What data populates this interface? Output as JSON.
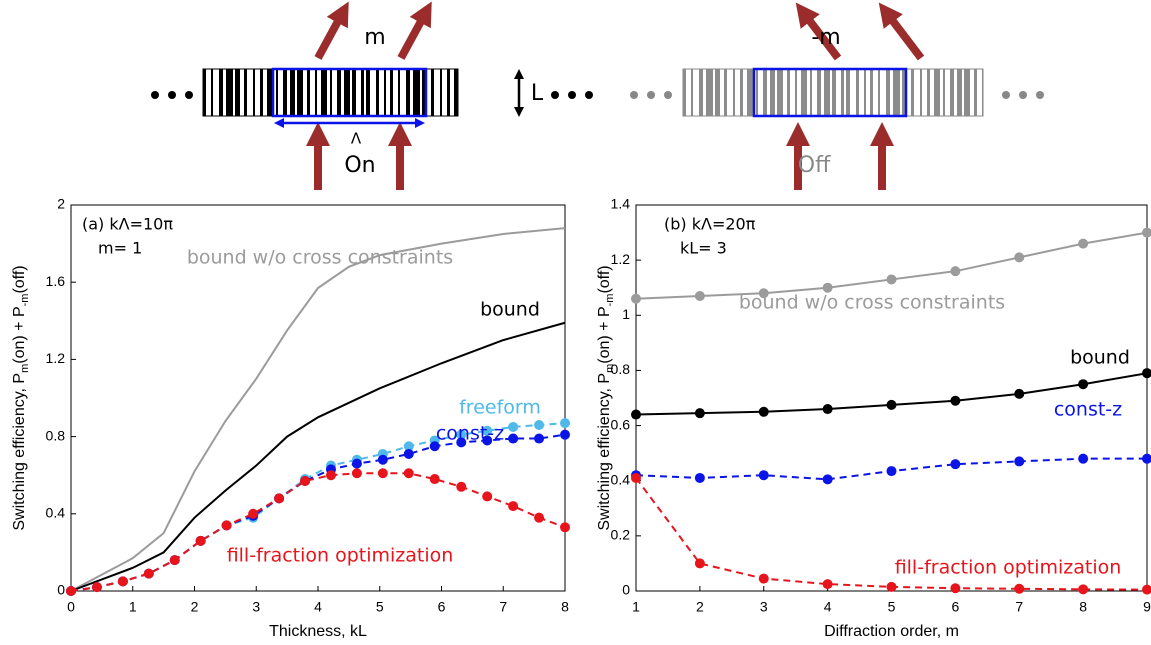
{
  "diagram": {
    "left_order": "m",
    "right_order": "-m",
    "left_state": "On",
    "right_state": "Off",
    "thickness": "L",
    "period": "Λ"
  },
  "chart_data": [
    {
      "type": "line",
      "annotation": [
        "(a) kΛ=10π",
        "m= 1"
      ],
      "xlabel": "Thickness, kL",
      "ylabel": [
        "Switching efficiency, P",
        "m",
        "(on) + P",
        "-m",
        "(off)"
      ],
      "xlim": [
        0,
        8
      ],
      "xticks": [
        0,
        1,
        2,
        3,
        4,
        5,
        6,
        7,
        8
      ],
      "ylim": [
        0,
        2
      ],
      "yticks": [
        0,
        0.4,
        0.8,
        1.2,
        1.6,
        2
      ],
      "series": [
        {
          "name": "bound w/o cross constraints",
          "color": "#9b9b9b",
          "linestyle": "solid",
          "marker": false,
          "x": [
            0,
            1,
            1.5,
            2,
            2.5,
            3,
            3.5,
            4,
            4.5,
            5,
            6,
            7,
            8
          ],
          "values": [
            0,
            0.17,
            0.3,
            0.62,
            0.88,
            1.1,
            1.35,
            1.57,
            1.68,
            1.74,
            1.8,
            1.85,
            1.88
          ]
        },
        {
          "name": "bound",
          "color": "#000000",
          "linestyle": "solid",
          "marker": false,
          "x": [
            0,
            1,
            1.5,
            2,
            2.5,
            3,
            3.5,
            4,
            5,
            6,
            7,
            8
          ],
          "values": [
            0,
            0.12,
            0.2,
            0.38,
            0.52,
            0.65,
            0.8,
            0.9,
            1.05,
            1.18,
            1.3,
            1.39
          ]
        },
        {
          "name": "freeform",
          "color": "#4fb9ea",
          "linestyle": "dashed",
          "marker": true,
          "x": [
            0,
            0.42,
            0.84,
            1.26,
            1.68,
            2.1,
            2.52,
            2.95,
            3.37,
            3.79,
            4.21,
            4.63,
            5.05,
            5.47,
            5.89,
            6.32,
            6.74,
            7.16,
            7.58,
            8
          ],
          "values": [
            0,
            0.02,
            0.05,
            0.09,
            0.16,
            0.26,
            0.34,
            0.38,
            0.48,
            0.58,
            0.65,
            0.68,
            0.71,
            0.75,
            0.78,
            0.81,
            0.83,
            0.85,
            0.86,
            0.87
          ]
        },
        {
          "name": "const-z",
          "color": "#0a14e6",
          "linestyle": "dashed",
          "marker": true,
          "x": [
            0,
            0.42,
            0.84,
            1.26,
            1.68,
            2.1,
            2.52,
            2.95,
            3.37,
            3.79,
            4.21,
            4.63,
            5.05,
            5.47,
            5.89,
            6.32,
            6.74,
            7.16,
            7.58,
            8
          ],
          "values": [
            0,
            0.02,
            0.05,
            0.09,
            0.16,
            0.26,
            0.34,
            0.39,
            0.48,
            0.57,
            0.63,
            0.66,
            0.68,
            0.71,
            0.75,
            0.77,
            0.78,
            0.79,
            0.79,
            0.81
          ]
        },
        {
          "name": "fill-fraction optimization",
          "color": "#e8141b",
          "linestyle": "dashed",
          "marker": true,
          "x": [
            0,
            0.42,
            0.84,
            1.26,
            1.68,
            2.1,
            2.52,
            2.95,
            3.37,
            3.79,
            4.21,
            4.63,
            5.05,
            5.47,
            5.89,
            6.32,
            6.74,
            7.16,
            7.58,
            8
          ],
          "values": [
            0,
            0.02,
            0.05,
            0.09,
            0.16,
            0.26,
            0.34,
            0.4,
            0.48,
            0.57,
            0.6,
            0.61,
            0.61,
            0.61,
            0.58,
            0.54,
            0.49,
            0.44,
            0.38,
            0.33
          ]
        }
      ]
    },
    {
      "type": "line",
      "annotation": [
        "(b) kΛ=20π",
        "kL= 3"
      ],
      "xlabel": "Diffraction order, m",
      "ylabel": [
        "Switching efficiency, P",
        "m",
        "(on) + P",
        "-m",
        "(off)"
      ],
      "xlim": [
        1,
        9
      ],
      "xticks": [
        1,
        2,
        3,
        4,
        5,
        6,
        7,
        8,
        9
      ],
      "ylim": [
        0,
        1.4
      ],
      "yticks": [
        0,
        0.2,
        0.4,
        0.6,
        0.8,
        1,
        1.2,
        1.4
      ],
      "x": [
        1,
        2,
        3,
        4,
        5,
        6,
        7,
        8,
        9
      ],
      "series": [
        {
          "name": "bound w/o cross constraints",
          "color": "#9b9b9b",
          "linestyle": "solid",
          "marker": true,
          "values": [
            1.06,
            1.07,
            1.08,
            1.1,
            1.13,
            1.16,
            1.21,
            1.26,
            1.3
          ]
        },
        {
          "name": "bound",
          "color": "#000000",
          "linestyle": "solid",
          "marker": true,
          "values": [
            0.64,
            0.645,
            0.65,
            0.66,
            0.675,
            0.69,
            0.715,
            0.75,
            0.79
          ]
        },
        {
          "name": "const-z",
          "color": "#0a14e6",
          "linestyle": "dashed",
          "marker": true,
          "values": [
            0.42,
            0.41,
            0.42,
            0.405,
            0.435,
            0.46,
            0.47,
            0.48,
            0.48
          ]
        },
        {
          "name": "fill-fraction optimization",
          "color": "#e8141b",
          "linestyle": "dashed",
          "marker": true,
          "values": [
            0.41,
            0.1,
            0.045,
            0.025,
            0.015,
            0.01,
            0.008,
            0.006,
            0.005
          ]
        }
      ]
    }
  ]
}
